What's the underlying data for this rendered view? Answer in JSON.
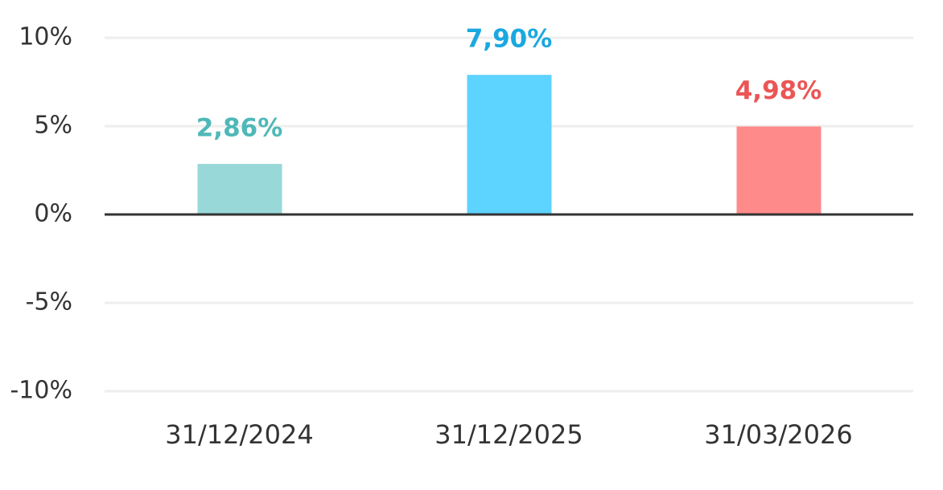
{
  "chart_data": {
    "type": "bar",
    "categories": [
      "31/12/2024",
      "31/12/2025",
      "31/03/2026"
    ],
    "values": [
      2.86,
      7.9,
      4.98
    ],
    "value_labels": [
      "2,86%",
      "7,90%",
      "4,98%"
    ],
    "colors": [
      "#98d8d8",
      "#5dd3ff",
      "#ff8a8a"
    ],
    "label_colors": [
      "#4fb8b8",
      "#1aa8e0",
      "#eb5555"
    ],
    "ylim": [
      -10,
      10
    ],
    "yticks": [
      {
        "value": -10,
        "label": "-10%"
      },
      {
        "value": -5,
        "label": "-5%"
      },
      {
        "value": 0,
        "label": "0%"
      },
      {
        "value": 5,
        "label": "5%"
      },
      {
        "value": 10,
        "label": "10%"
      }
    ],
    "grid": true
  }
}
